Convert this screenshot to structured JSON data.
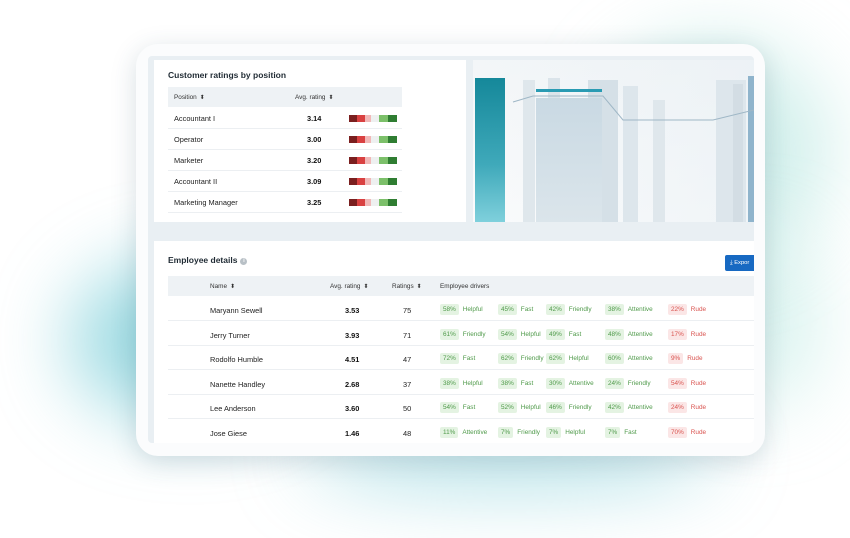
{
  "colors": {
    "accent": "#1769c2",
    "teal": "#1a8ea1",
    "positive": "#4f9a4a",
    "negative": "#d9534f"
  },
  "positions_card": {
    "title": "Customer ratings by position",
    "headers": {
      "position": "Position",
      "avg_rating": "Avg. rating"
    },
    "rows": [
      {
        "position": "Accountant I",
        "rating": "3.14"
      },
      {
        "position": "Operator",
        "rating": "3.00"
      },
      {
        "position": "Marketer",
        "rating": "3.20"
      },
      {
        "position": "Accountant II",
        "rating": "3.09"
      },
      {
        "position": "Marketing Manager",
        "rating": "3.25"
      }
    ]
  },
  "employee_card": {
    "title": "Employee details",
    "info_icon": "info-icon",
    "export_label": "Expor",
    "export_icon": "download-icon",
    "headers": {
      "name": "Name",
      "avg_rating": "Avg. rating",
      "ratings": "Ratings",
      "drivers": "Employee drivers"
    },
    "rows": [
      {
        "name": "Maryann Sewell",
        "avg": "3.53",
        "count": "75",
        "drivers": [
          {
            "pct": "58%",
            "label": "Helpful",
            "tone": "pos"
          },
          {
            "pct": "45%",
            "label": "Fast",
            "tone": "pos"
          },
          {
            "pct": "42%",
            "label": "Friendly",
            "tone": "pos"
          },
          {
            "pct": "38%",
            "label": "Attentive",
            "tone": "pos"
          },
          {
            "pct": "22%",
            "label": "Rude",
            "tone": "neg"
          }
        ]
      },
      {
        "name": "Jerry Turner",
        "avg": "3.93",
        "count": "71",
        "drivers": [
          {
            "pct": "61%",
            "label": "Friendly",
            "tone": "pos"
          },
          {
            "pct": "54%",
            "label": "Helpful",
            "tone": "pos"
          },
          {
            "pct": "49%",
            "label": "Fast",
            "tone": "pos"
          },
          {
            "pct": "48%",
            "label": "Attentive",
            "tone": "pos"
          },
          {
            "pct": "17%",
            "label": "Rude",
            "tone": "neg"
          }
        ]
      },
      {
        "name": "Rodolfo Humble",
        "avg": "4.51",
        "count": "47",
        "drivers": [
          {
            "pct": "72%",
            "label": "Fast",
            "tone": "pos"
          },
          {
            "pct": "62%",
            "label": "Friendly",
            "tone": "pos"
          },
          {
            "pct": "62%",
            "label": "Helpful",
            "tone": "pos"
          },
          {
            "pct": "60%",
            "label": "Attentive",
            "tone": "pos"
          },
          {
            "pct": "9%",
            "label": "Rude",
            "tone": "neg"
          }
        ]
      },
      {
        "name": "Nanette Handley",
        "avg": "2.68",
        "count": "37",
        "drivers": [
          {
            "pct": "38%",
            "label": "Helpful",
            "tone": "pos"
          },
          {
            "pct": "38%",
            "label": "Fast",
            "tone": "pos"
          },
          {
            "pct": "30%",
            "label": "Attentive",
            "tone": "pos"
          },
          {
            "pct": "24%",
            "label": "Friendly",
            "tone": "pos"
          },
          {
            "pct": "54%",
            "label": "Rude",
            "tone": "neg"
          }
        ]
      },
      {
        "name": "Lee Anderson",
        "avg": "3.60",
        "count": "50",
        "drivers": [
          {
            "pct": "54%",
            "label": "Fast",
            "tone": "pos"
          },
          {
            "pct": "52%",
            "label": "Helpful",
            "tone": "pos"
          },
          {
            "pct": "46%",
            "label": "Friendly",
            "tone": "pos"
          },
          {
            "pct": "42%",
            "label": "Attentive",
            "tone": "pos"
          },
          {
            "pct": "24%",
            "label": "Rude",
            "tone": "neg"
          }
        ]
      },
      {
        "name": "Jose Giese",
        "avg": "1.46",
        "count": "48",
        "drivers": [
          {
            "pct": "11%",
            "label": "Attentive",
            "tone": "pos"
          },
          {
            "pct": "7%",
            "label": "Friendly",
            "tone": "pos"
          },
          {
            "pct": "7%",
            "label": "Helpful",
            "tone": "pos"
          },
          {
            "pct": "7%",
            "label": "Fast",
            "tone": "pos"
          },
          {
            "pct": "70%",
            "label": "Rude",
            "tone": "neg"
          }
        ]
      }
    ]
  }
}
